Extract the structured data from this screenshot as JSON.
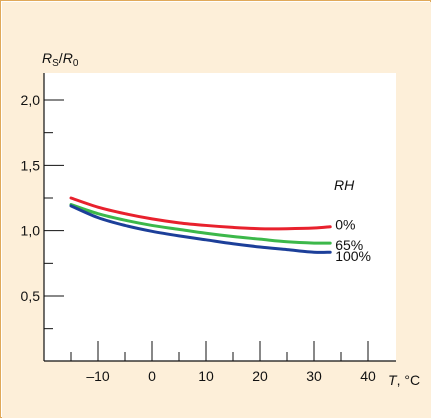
{
  "chart_data": {
    "type": "line",
    "title": "",
    "ylabel": {
      "prefix": "R",
      "prefix_sub": "S",
      "slash": "/",
      "suffix": "R",
      "suffix_sub": "0"
    },
    "xlabel": {
      "var": "T",
      "unit": ", °C"
    },
    "xlim": [
      -20,
      45
    ],
    "ylim": [
      0,
      2.3
    ],
    "x_ticks_major": [
      -10,
      0,
      10,
      20,
      30,
      40
    ],
    "x_tick_labels": [
      "–10",
      "0",
      "10",
      "20",
      "30",
      "40"
    ],
    "x_ticks_minor": [
      -15,
      -5,
      5,
      15,
      25,
      35
    ],
    "y_ticks_major": [
      0.5,
      1.0,
      1.5,
      2.0
    ],
    "y_tick_labels": [
      "0,5",
      "1,0",
      "1,5",
      "2,0"
    ],
    "y_ticks_minor": [
      0.25,
      0.75,
      1.25,
      1.75
    ],
    "legend_title": "RH",
    "series": [
      {
        "name": "0%",
        "color": "#e8212d",
        "x": [
          -15,
          -10,
          -5,
          0,
          5,
          10,
          15,
          20,
          25,
          30,
          33
        ],
        "y": [
          1.25,
          1.18,
          1.13,
          1.09,
          1.06,
          1.04,
          1.025,
          1.015,
          1.015,
          1.02,
          1.03
        ]
      },
      {
        "name": "65%",
        "color": "#3cb84a",
        "x": [
          -15,
          -10,
          -5,
          0,
          5,
          10,
          15,
          20,
          25,
          30,
          33
        ],
        "y": [
          1.2,
          1.13,
          1.08,
          1.04,
          1.01,
          0.98,
          0.955,
          0.935,
          0.915,
          0.905,
          0.905
        ]
      },
      {
        "name": "100%",
        "color": "#1c3f99",
        "x": [
          -15,
          -10,
          -5,
          0,
          5,
          10,
          15,
          20,
          25,
          30,
          33
        ],
        "y": [
          1.19,
          1.1,
          1.04,
          0.995,
          0.96,
          0.93,
          0.9,
          0.875,
          0.855,
          0.835,
          0.835
        ]
      }
    ]
  }
}
